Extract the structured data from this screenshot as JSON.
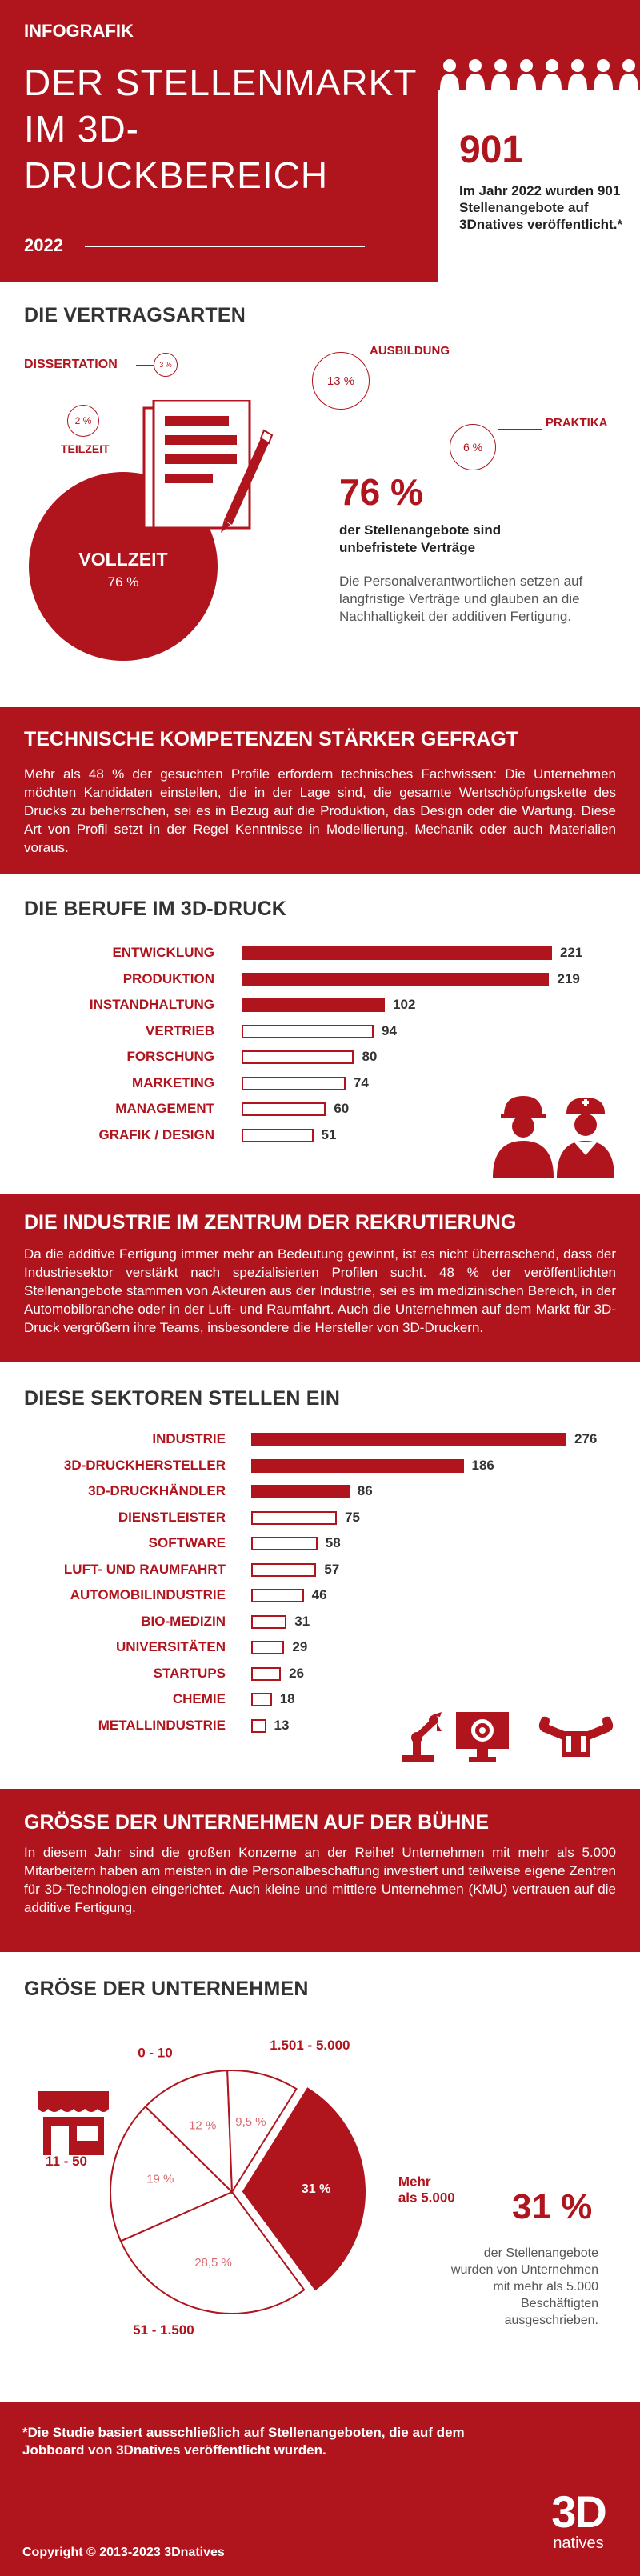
{
  "header": {
    "tag": "INFOGRAFIK",
    "title_lines": [
      "DER STELLENMARKT",
      "IM 3D-",
      "DRUCKBEREICH"
    ],
    "year": "2022",
    "big_number": "901",
    "big_text": "Im Jahr 2022 wurden 901 Stellenangebote auf 3Dnatives veröffentlicht.*"
  },
  "contracts": {
    "title": "DIE VERTRAGSARTEN",
    "items": [
      {
        "label": "DISSERTATION",
        "value": "3 %"
      },
      {
        "label": "TEILZEIT",
        "value": "2 %"
      },
      {
        "label": "AUSBILDUNG",
        "value": "13 %"
      },
      {
        "label": "PRAKTIKA",
        "value": "6 %"
      },
      {
        "label": "VOLLZEIT",
        "value": "76 %"
      }
    ],
    "highlight_value": "76 %",
    "highlight_text": "der Stellenangebote sind unbefristete Verträge",
    "note": "Die Personalverantwortlichen setzen auf langfristige Verträge und glauben an die Nachhaltigkeit der additiven Fertigung."
  },
  "competences": {
    "title": "TECHNISCHE KOMPETENZEN STÄRKER GEFRAGT",
    "text": "Mehr als 48 % der gesuchten Profile erfordern technisches Fachwissen: Die Unternehmen möchten Kandidaten einstellen, die in der Lage sind, die gesamte Wertschöpfungskette des Drucks zu beherrschen, sei es in Bezug auf die Produktion, das Design oder die Wartung. Diese Art von Profil setzt in der Regel Kenntnisse in Modellierung, Mechanik oder auch Materialien voraus."
  },
  "industry_band": {
    "title": "DIE INDUSTRIE IM ZENTRUM DER REKRUTIERUNG",
    "text": "Da die additive Fertigung immer mehr an Bedeutung gewinnt, ist es nicht überraschend, dass der Industriesektor verstärkt nach spezialisierten Profilen sucht. 48 % der veröffentlichten Stellenangebote stammen von Akteuren aus der Industrie, sei es im medizinischen Bereich, in der Automobilbranche oder in der Luft- und Raumfahrt. Auch die Unternehmen auf dem Markt für 3D-Druck vergrößern ihre Teams, insbesondere die Hersteller von 3D-Druckern."
  },
  "size_band": {
    "title": "GRÖSSE DER UNTERNEHMEN AUF DER BÜHNE",
    "text": "In diesem Jahr sind die großen Konzerne an der Reihe! Unternehmen mit mehr als 5.000 Mitarbeitern haben am meisten in die Personalbeschaffung investiert und teilweise eigene Zentren für 3D-Technologien eingerichtet. Auch kleine und mittlere Unternehmen (KMU) vertrauen auf die additive Fertigung."
  },
  "pie_note": {
    "value": "31 %",
    "text": "der Stellenangebote wurden von Unternehmen mit mehr als 5.000 Beschäftigten ausgeschrieben."
  },
  "footer": {
    "note": "*Die Studie basiert ausschließlich auf Stellenangeboten, die auf dem Jobboard von 3Dnatives veröffentlicht wurden.",
    "copyright": "Copyright © 2013-2023 3Dnatives",
    "logo_big": "3D",
    "logo_small": "natives"
  },
  "colors": {
    "accent": "#b0141d",
    "text": "#333333"
  },
  "chart_data": [
    {
      "type": "bar",
      "title": "DIE BERUFE IM 3D-DRUCK",
      "categories": [
        "ENTWICKLUNG",
        "PRODUKTION",
        "INSTANDHALTUNG",
        "VERTRIEB",
        "FORSCHUNG",
        "MARKETING",
        "MANAGEMENT",
        "GRAFIK / DESIGN"
      ],
      "values": [
        221,
        219,
        102,
        94,
        80,
        74,
        60,
        51
      ],
      "filled": [
        true,
        true,
        true,
        false,
        false,
        false,
        false,
        false
      ],
      "orientation": "horizontal"
    },
    {
      "type": "bar",
      "title": "DIESE SEKTOREN STELLEN EIN",
      "categories": [
        "INDUSTRIE",
        "3D-DRUCKHERSTELLER",
        "3D-DRUCKHÄNDLER",
        "DIENSTLEISTER",
        "SOFTWARE",
        "LUFT- UND RAUMFAHRT",
        "AUTOMOBILINDUSTRIE",
        "BIO-MEDIZIN",
        "UNIVERSITÄTEN",
        "STARTUPS",
        "CHEMIE",
        "METALLINDUSTRIE"
      ],
      "values": [
        276,
        186,
        86,
        75,
        58,
        57,
        46,
        31,
        29,
        26,
        18,
        13
      ],
      "filled": [
        true,
        true,
        true,
        false,
        false,
        false,
        false,
        false,
        false,
        false,
        false,
        false
      ],
      "orientation": "horizontal"
    },
    {
      "type": "pie",
      "title": "GRÖSE DER UNTERNEHMEN",
      "slices": [
        {
          "label": "Mehr als 5.000",
          "value": 31,
          "value_label": "31 %"
        },
        {
          "label": "51 - 1.500",
          "value": 28.5,
          "value_label": "28,5 %"
        },
        {
          "label": "11 - 50",
          "value": 19,
          "value_label": "19 %"
        },
        {
          "label": "0 - 10",
          "value": 12,
          "value_label": "12 %"
        },
        {
          "label": "1.501 - 5.000",
          "value": 9.5,
          "value_label": "9,5 %"
        }
      ]
    }
  ]
}
